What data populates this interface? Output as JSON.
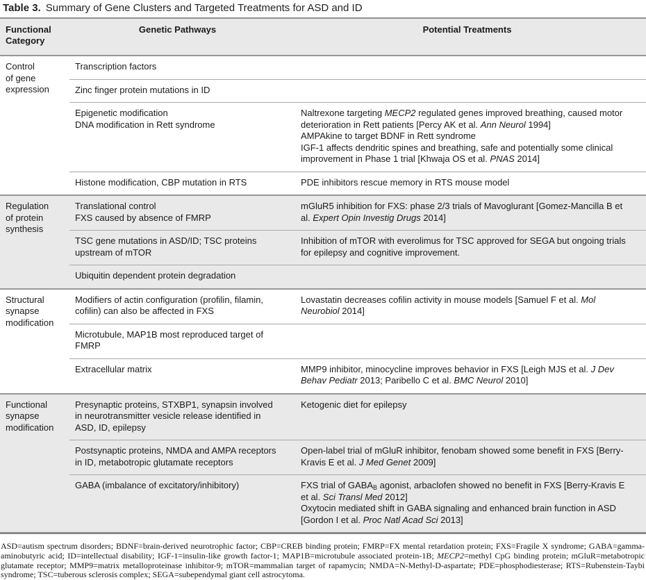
{
  "title": {
    "label": "Table 3.",
    "text": "Summary of Gene Clusters and Targeted Treatments for ASD and ID"
  },
  "colors": {
    "shaded_band": "#e9e9e9",
    "rule_major": "#919191",
    "rule_minor": "#a9a9a9",
    "text": "#1b1b1b"
  },
  "table": {
    "headers": [
      "Functional Category",
      "Genetic Pathways",
      "Potential Treatments"
    ],
    "sections": [
      {
        "shaded": false,
        "category": [
          {
            "t": "Control"
          },
          {
            "br": true
          },
          {
            "t": "of gene"
          },
          {
            "br": true
          },
          {
            "t": "expression"
          }
        ],
        "rows": [
          {
            "pathway": [
              {
                "t": "Transcription factors"
              }
            ],
            "treatment": []
          },
          {
            "pathway": [
              {
                "t": "Zinc finger protein mutations in ID"
              }
            ],
            "treatment": []
          },
          {
            "pathway": [
              {
                "t": "Epigenetic modification"
              },
              {
                "br": true
              },
              {
                "t": "DNA modification in Rett syndrome"
              }
            ],
            "treatment": [
              {
                "t": "Naltrexone targeting "
              },
              {
                "t": "MECP2",
                "i": true
              },
              {
                "t": " regulated genes improved breathing, caused motor deterioration in Rett patients [Percy AK et al. "
              },
              {
                "t": "Ann Neurol",
                "i": true
              },
              {
                "t": " 1994]"
              },
              {
                "br": true
              },
              {
                "t": "AMPAkine to target BDNF in Rett syndrome"
              },
              {
                "br": true
              },
              {
                "t": "IGF-1 affects dendritic spines and breathing, safe and potentially some clinical improvement in Phase 1 trial [Khwaja OS et al. "
              },
              {
                "t": "PNAS",
                "i": true
              },
              {
                "t": " 2014]"
              }
            ]
          },
          {
            "pathway": [
              {
                "t": "Histone modification, CBP mutation in RTS"
              }
            ],
            "treatment": [
              {
                "t": "PDE inhibitors rescue memory in RTS mouse model"
              }
            ]
          }
        ]
      },
      {
        "shaded": true,
        "category": [
          {
            "t": "Regulation"
          },
          {
            "br": true
          },
          {
            "t": "of protein"
          },
          {
            "br": true
          },
          {
            "t": "synthesis"
          }
        ],
        "rows": [
          {
            "pathway": [
              {
                "t": "Translational control"
              },
              {
                "br": true
              },
              {
                "t": "FXS caused by absence of FMRP"
              }
            ],
            "treatment": [
              {
                "t": "mGluR5 inhibition for FXS: phase 2/3 trials of Mavoglurant [Gomez-Mancilla B et al. "
              },
              {
                "t": "Expert Opin Investig Drugs",
                "i": true
              },
              {
                "t": " 2014]"
              }
            ]
          },
          {
            "pathway": [
              {
                "t": "TSC gene mutations in ASD/ID; TSC proteins"
              },
              {
                "br": true
              },
              {
                "t": "upstream of mTOR"
              }
            ],
            "treatment": [
              {
                "t": "Inhibition of mTOR with everolimus for TSC approved for SEGA but ongoing trials for epilepsy and cognitive improvement."
              }
            ]
          },
          {
            "pathway": [
              {
                "t": "Ubiquitin dependent protein degradation"
              }
            ],
            "treatment": []
          }
        ]
      },
      {
        "shaded": false,
        "category": [
          {
            "t": "Structural"
          },
          {
            "br": true
          },
          {
            "t": "synapse"
          },
          {
            "br": true
          },
          {
            "t": "modification"
          }
        ],
        "rows": [
          {
            "pathway": [
              {
                "t": "Modifiers of actin configuration (profilin, filamin,"
              },
              {
                "br": true
              },
              {
                "t": "cofilin) can also be affected in FXS"
              }
            ],
            "treatment": [
              {
                "t": "Lovastatin decreases cofilin activity in mouse models [Samuel F et al. "
              },
              {
                "t": "Mol Neurobiol",
                "i": true
              },
              {
                "t": " 2014]"
              }
            ]
          },
          {
            "pathway": [
              {
                "t": "Microtubule, MAP1B most reproduced target of"
              },
              {
                "br": true
              },
              {
                "t": "FMRP"
              }
            ],
            "treatment": []
          },
          {
            "pathway": [
              {
                "t": "Extracellular matrix"
              }
            ],
            "treatment": [
              {
                "t": "MMP9 inhibitor, minocycline improves behavior in FXS [Leigh MJS et al. "
              },
              {
                "t": "J Dev Behav Pediatr",
                "i": true
              },
              {
                "t": " 2013; Paribello C et al. "
              },
              {
                "t": "BMC Neurol",
                "i": true
              },
              {
                "t": " 2010]"
              }
            ]
          }
        ]
      },
      {
        "shaded": true,
        "category": [
          {
            "t": "Functional"
          },
          {
            "br": true
          },
          {
            "t": "synapse"
          },
          {
            "br": true
          },
          {
            "t": "modification"
          }
        ],
        "rows": [
          {
            "pathway": [
              {
                "t": "Presynaptic proteins, STXBP1, synapsin involved"
              },
              {
                "br": true
              },
              {
                "t": "in neurotransmitter vesicle release identified in"
              },
              {
                "br": true
              },
              {
                "t": "ASD, ID, epilepsy"
              }
            ],
            "treatment": [
              {
                "t": "Ketogenic diet for epilepsy"
              }
            ]
          },
          {
            "pathway": [
              {
                "t": "Postsynaptic proteins, NMDA and AMPA receptors"
              },
              {
                "br": true
              },
              {
                "t": "in ID, metabotropic glutamate receptors"
              }
            ],
            "treatment": [
              {
                "t": "Open-label trial of mGluR inhibitor, fenobam showed some benefit in FXS [Berry-Kravis E et al. "
              },
              {
                "t": "J Med Genet",
                "i": true
              },
              {
                "t": " 2009]"
              }
            ]
          },
          {
            "pathway": [
              {
                "t": "GABA (imbalance of excitatory/inhibitory)"
              }
            ],
            "treatment": [
              {
                "t": "FXS trial of GABA"
              },
              {
                "t": "B",
                "sub": true
              },
              {
                "t": " agonist, arbaclofen showed no benefit in FXS [Berry-Kravis E et al. "
              },
              {
                "t": "Sci Transl Med",
                "i": true
              },
              {
                "t": " 2012]"
              },
              {
                "br": true
              },
              {
                "t": "Oxytocin mediated shift in GABA signaling and enhanced brain function in ASD [Gordon I et al. "
              },
              {
                "t": "Proc Natl Acad Sci",
                "i": true
              },
              {
                "t": " 2013]"
              }
            ]
          }
        ]
      }
    ]
  },
  "footnote": [
    {
      "t": "ASD=autism spectrum disorders; BDNF=brain-derived neurotrophic factor; CBP=CREB binding protein; FMRP=FX mental retardation protein; FXS=Fragile X syndrome; GABA=gamma-aminobutyric acid; ID=intellectual disability; IGF-1=insulin-like growth factor-1; MAP1B=microtubule associated protein-1B; "
    },
    {
      "t": "MECP2",
      "i": true
    },
    {
      "t": "=methyl CpG binding protein; mGluR=metabotropic glutamate receptor; MMP9=matrix metalloproteinase inhibitor-9; mTOR=mammalian target of rapamycin; NMDA=N-Methyl-D-aspartate; PDE=phosphodiesterase; RTS=Rubenstein-Taybi syndrome; TSC=tuberous sclerosis complex; SEGA=subependymal giant cell astrocytoma."
    }
  ]
}
